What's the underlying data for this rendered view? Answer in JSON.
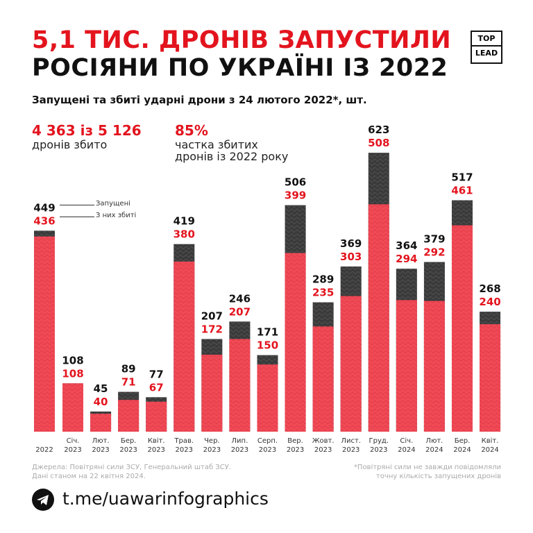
{
  "title_line1": "5,1 ТИС. ДРОНІВ ЗАПУСТИЛИ",
  "title_line2": "РОСІЯНИ ПО УКРАЇНІ ІЗ 2022",
  "logo": {
    "top": "TOP",
    "bottom": "LEAD"
  },
  "subtitle": "Запущені та збиті ударні дрони з 24 лютого 2022*, шт.",
  "stats": [
    {
      "value": "4 363 із 5 126",
      "label": "дронів збито"
    },
    {
      "value": "85%",
      "label_line1": "частка збитих",
      "label_line2": "дронів із 2022 року"
    }
  ],
  "legend": {
    "launched": "Запущені",
    "shot_down": "З них збиті"
  },
  "colors": {
    "launched": "#3a3a3a",
    "shot_down": "#f04a57",
    "accent": "#e3141e"
  },
  "chart_data": {
    "type": "bar",
    "categories": [
      [
        "",
        "2022"
      ],
      [
        "Січ.",
        "2023"
      ],
      [
        "Лют.",
        "2023"
      ],
      [
        "Бер.",
        "2023"
      ],
      [
        "Квіт.",
        "2023"
      ],
      [
        "Трав.",
        "2023"
      ],
      [
        "Чер.",
        "2023"
      ],
      [
        "Лип.",
        "2023"
      ],
      [
        "Серп.",
        "2023"
      ],
      [
        "Вер.",
        "2023"
      ],
      [
        "Жовт.",
        "2023"
      ],
      [
        "Лист.",
        "2023"
      ],
      [
        "Груд.",
        "2023"
      ],
      [
        "Січ.",
        "2024"
      ],
      [
        "Лют.",
        "2024"
      ],
      [
        "Бер.",
        "2024"
      ],
      [
        "Квіт.",
        "2024"
      ]
    ],
    "series": [
      {
        "name": "Запущені",
        "values": [
          449,
          108,
          45,
          89,
          77,
          419,
          207,
          246,
          171,
          506,
          289,
          369,
          623,
          364,
          379,
          517,
          268
        ]
      },
      {
        "name": "З них збиті",
        "values": [
          436,
          108,
          40,
          71,
          67,
          380,
          172,
          207,
          150,
          399,
          235,
          303,
          508,
          294,
          292,
          461,
          240
        ]
      }
    ]
  },
  "source_line1": "Джерела: Повітряні сили ЗСУ, Генеральний штаб ЗСУ.",
  "source_line2": "Дані станом на 22 квітня 2024.",
  "note_line1": "*Повітряні сили не завжди повідомляли",
  "note_line2": "точну кількість запущених дронів",
  "telegram": "t.me/uawarinfographics",
  "telegram_icon": "telegram-icon"
}
